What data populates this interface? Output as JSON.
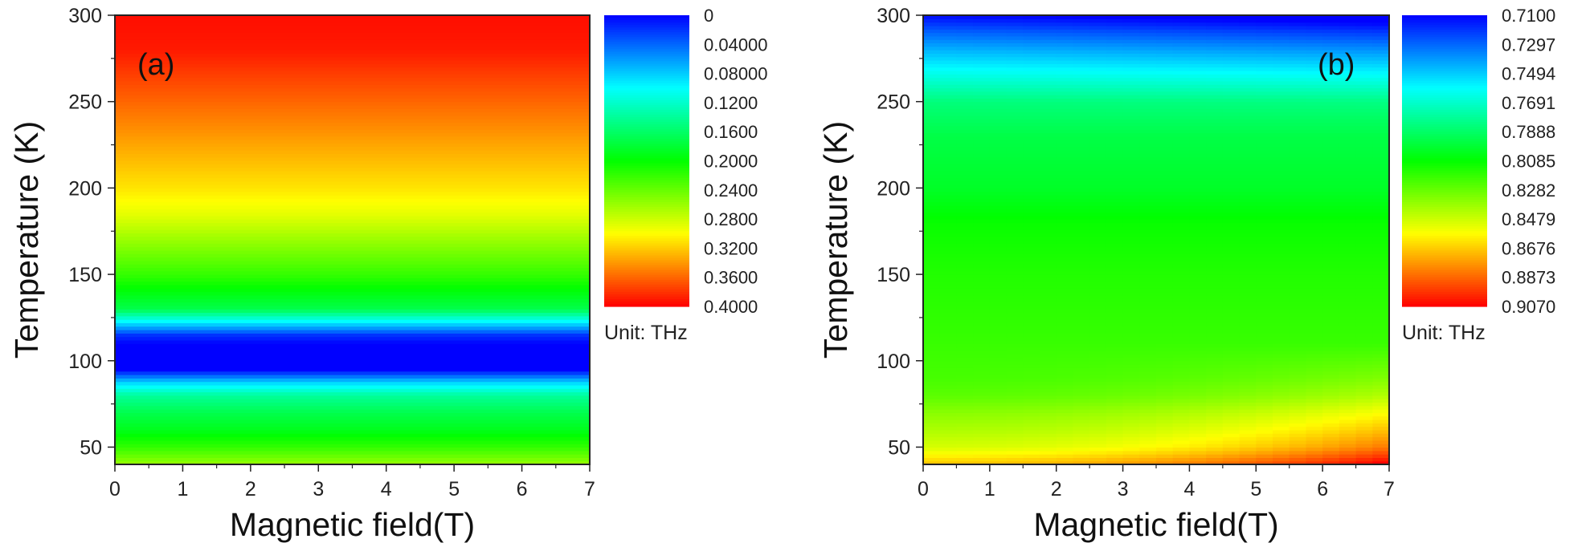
{
  "chart_data": [
    {
      "type": "heatmap",
      "panel_label": "(a)",
      "xlabel": "Magnetic field(T)",
      "ylabel": "Temperature (K)",
      "xlim": [
        0,
        7
      ],
      "ylim": [
        40,
        300
      ],
      "x_ticks": [
        "0",
        "1",
        "2",
        "3",
        "4",
        "5",
        "6",
        "7"
      ],
      "y_ticks": [
        "50",
        "100",
        "150",
        "200",
        "250",
        "300"
      ],
      "unit_label": "Unit: THz",
      "colorbar": {
        "range": [
          0,
          0.4
        ],
        "ticks": [
          "0",
          "0.04000",
          "0.08000",
          "0.1200",
          "0.1600",
          "0.2000",
          "0.2400",
          "0.2800",
          "0.3200",
          "0.3600",
          "0.4000"
        ],
        "colormap": [
          "#0000ff",
          "#00ffff",
          "#00ff00",
          "#ffff00",
          "#ff0000"
        ]
      },
      "profile_by_temperature": {
        "temperature": [
          40,
          50,
          60,
          70,
          80,
          88,
          95,
          100,
          110,
          115,
          122,
          130,
          150,
          170,
          185,
          200,
          230,
          260,
          280,
          300
        ],
        "frequency": [
          0.26,
          0.22,
          0.19,
          0.17,
          0.14,
          0.08,
          0.0,
          0.0,
          0.0,
          0.02,
          0.09,
          0.17,
          0.22,
          0.26,
          0.29,
          0.31,
          0.34,
          0.37,
          0.39,
          0.395
        ]
      }
    },
    {
      "type": "heatmap",
      "panel_label": "(b)",
      "xlabel": "Magnetic field(T)",
      "ylabel": "Temperature (K)",
      "xlim": [
        0,
        7
      ],
      "ylim": [
        40,
        300
      ],
      "x_ticks": [
        "0",
        "1",
        "2",
        "3",
        "4",
        "5",
        "6",
        "7"
      ],
      "y_ticks": [
        "50",
        "100",
        "150",
        "200",
        "250",
        "300"
      ],
      "unit_label": "Unit: THz",
      "colorbar": {
        "range": [
          0.71,
          0.907
        ],
        "ticks": [
          "0.7100",
          "0.7297",
          "0.7494",
          "0.7691",
          "0.7888",
          "0.8085",
          "0.8282",
          "0.8479",
          "0.8676",
          "0.8873",
          "0.9070"
        ],
        "colormap": [
          "#0000ff",
          "#00ffff",
          "#00ff00",
          "#ffff00",
          "#ff0000"
        ]
      },
      "profile_by_temperature": {
        "temperature": [
          40,
          50,
          60,
          70,
          80,
          90,
          120,
          150,
          180,
          200,
          230,
          250,
          265,
          280,
          290,
          300
        ],
        "frequency": [
          0.87,
          0.85,
          0.842,
          0.835,
          0.826,
          0.822,
          0.818,
          0.815,
          0.81,
          0.801,
          0.795,
          0.785,
          0.765,
          0.745,
          0.73,
          0.712
        ]
      },
      "field_effect": "higher field raises frequency at low temperature"
    }
  ]
}
